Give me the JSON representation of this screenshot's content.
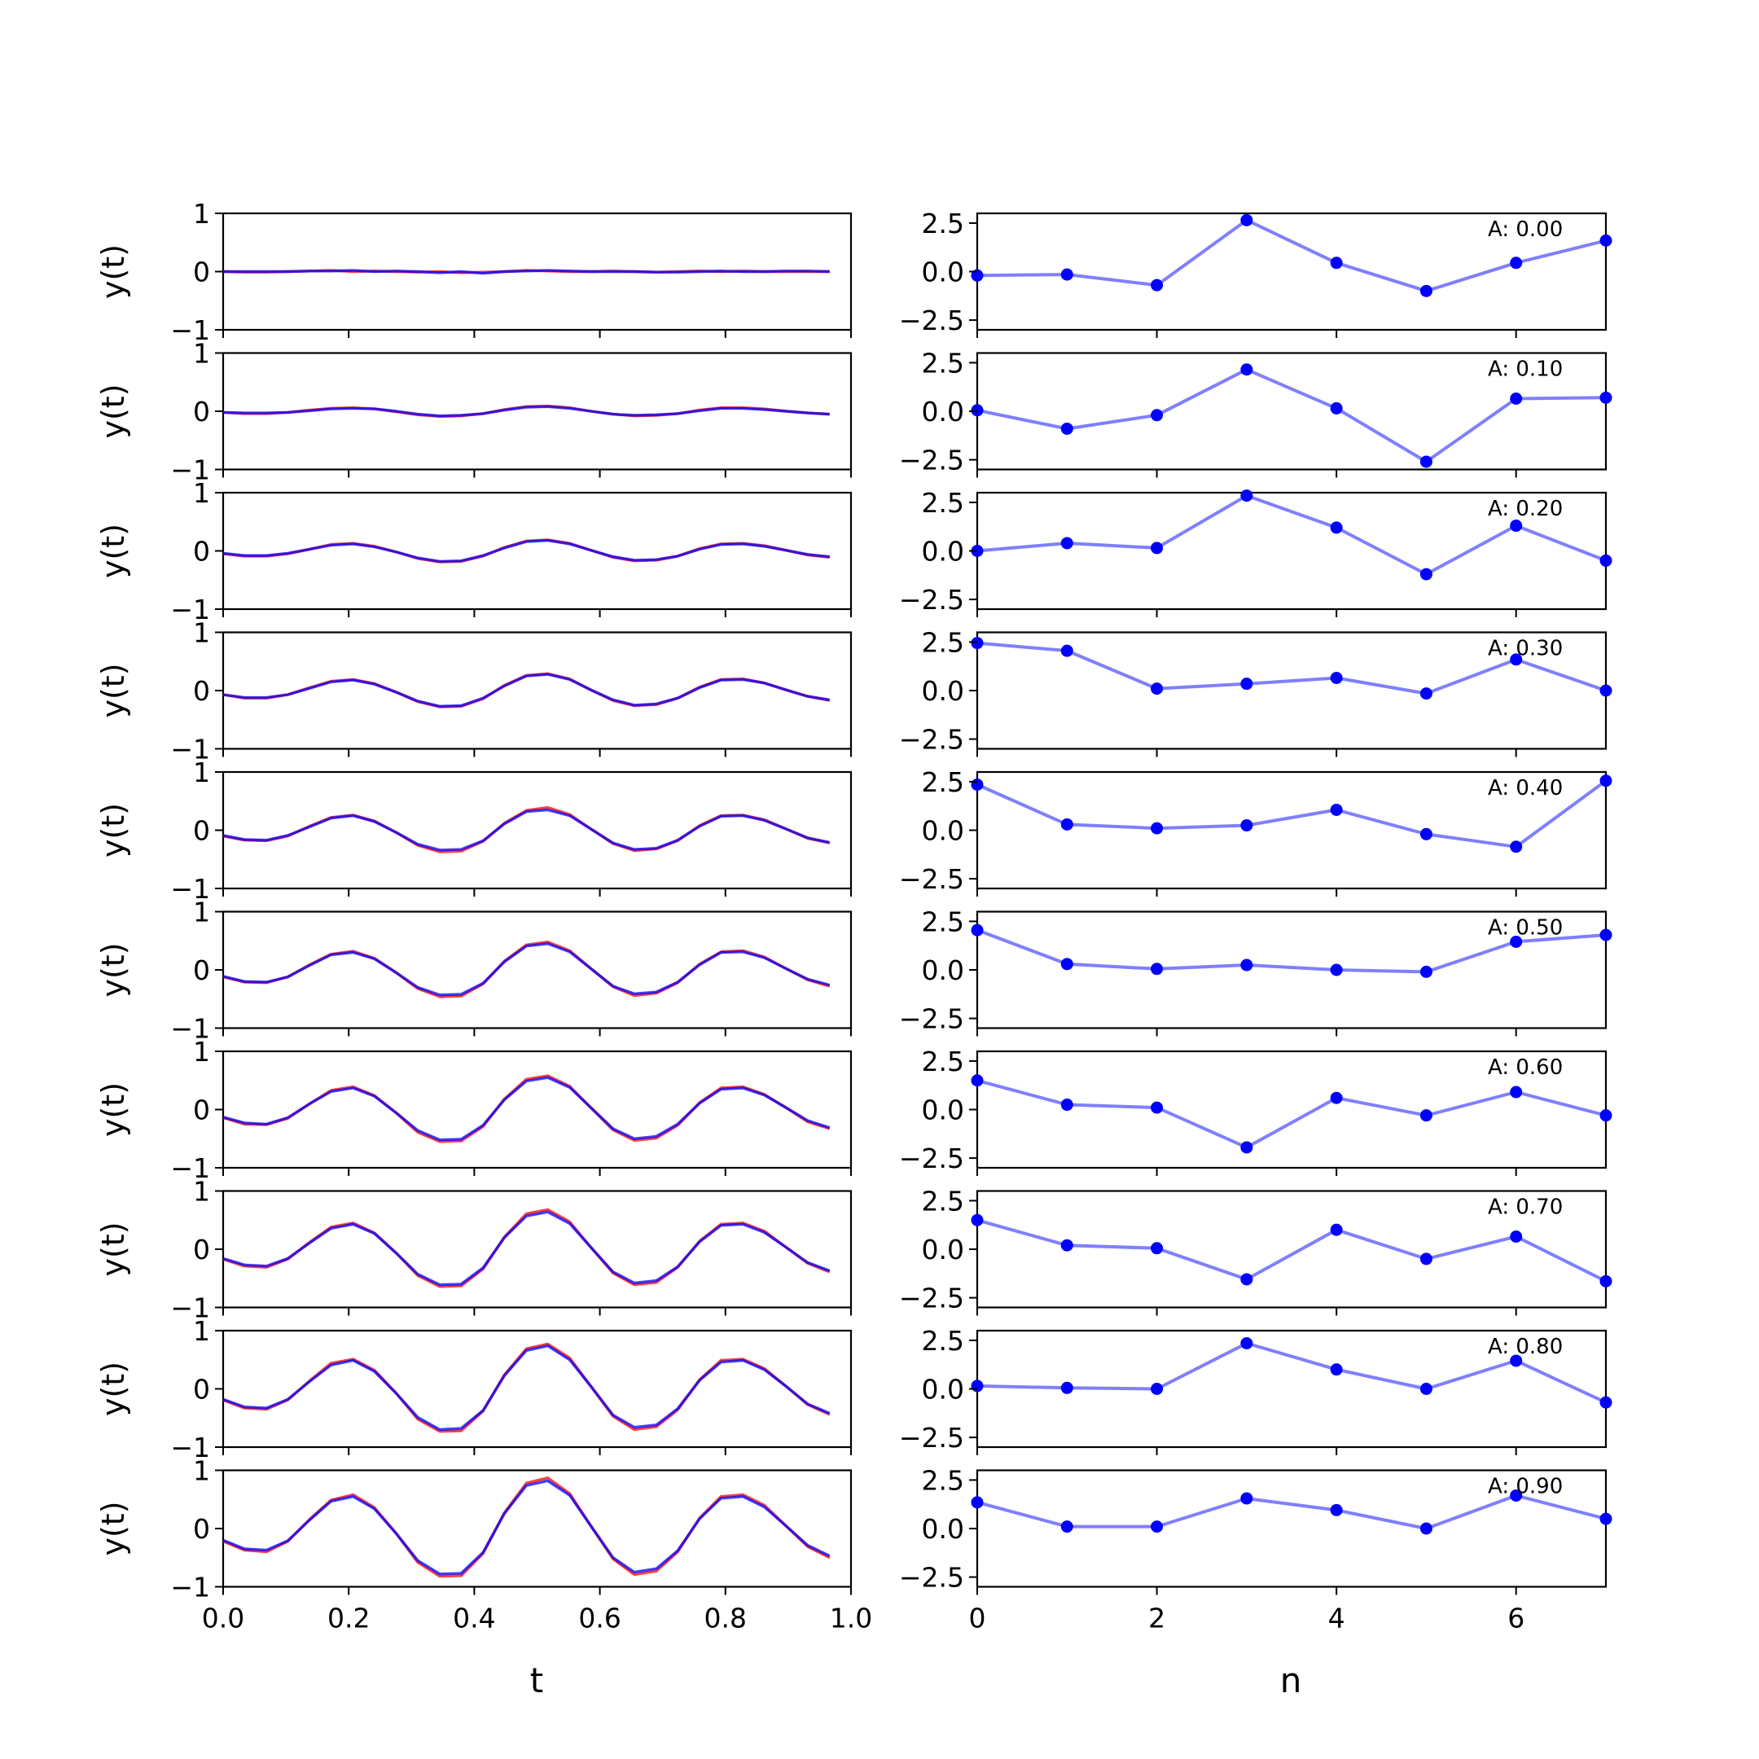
{
  "figure": {
    "left_xlabel": "t",
    "right_xlabel": "n"
  },
  "colors": {
    "signal_red": "#ff0000",
    "signal_blue": "#0000ff",
    "coef_line": "#7f7fff",
    "coef_marker": "#0000ff",
    "axes": "#000000"
  },
  "chart_data": [
    {
      "type": "line",
      "panel": "time-signals",
      "xlabel": "t",
      "ylabel": "y(t)",
      "xlim": [
        0,
        1
      ],
      "ylim": [
        -1,
        1
      ],
      "x_ticks": [
        "0.0",
        "0.2",
        "0.4",
        "0.6",
        "0.8",
        "1.0"
      ],
      "y_ticks": [
        "−1",
        "0",
        "1"
      ],
      "t": [
        0.0,
        0.034,
        0.069,
        0.103,
        0.138,
        0.172,
        0.207,
        0.241,
        0.276,
        0.31,
        0.345,
        0.379,
        0.414,
        0.448,
        0.483,
        0.517,
        0.552,
        0.586,
        0.621,
        0.655,
        0.69,
        0.724,
        0.759,
        0.793,
        0.828,
        0.862,
        0.897,
        0.931,
        0.966
      ],
      "rows": [
        {
          "amplitude": "0.00",
          "red": [
            0.0,
            -0.01,
            -0.01,
            0.0,
            0.01,
            0.02,
            0.0,
            0.01,
            0.0,
            -0.01,
            0.0,
            -0.02,
            -0.01,
            0.0,
            0.02,
            0.01,
            0.0,
            0.0,
            0.01,
            0.0,
            -0.01,
            0.0,
            0.01,
            0.0,
            0.01,
            0.0,
            0.0,
            0.0,
            0.0
          ],
          "blue": [
            0.0,
            0.0,
            0.0,
            0.0,
            0.01,
            0.01,
            0.02,
            0.0,
            0.01,
            0.0,
            -0.02,
            0.0,
            -0.03,
            0.0,
            0.01,
            0.02,
            0.01,
            0.0,
            0.0,
            0.0,
            -0.01,
            -0.01,
            0.0,
            0.01,
            0.0,
            0.0,
            0.01,
            0.01,
            0.0
          ]
        },
        {
          "amplitude": "0.10",
          "red": [
            -0.02,
            -0.04,
            -0.04,
            -0.02,
            0.02,
            0.05,
            0.06,
            0.04,
            -0.01,
            -0.06,
            -0.09,
            -0.08,
            -0.04,
            0.03,
            0.08,
            0.09,
            0.06,
            0.0,
            -0.05,
            -0.08,
            -0.07,
            -0.04,
            0.02,
            0.06,
            0.06,
            0.04,
            0.0,
            -0.03,
            -0.05
          ],
          "blue": [
            -0.02,
            -0.03,
            -0.03,
            -0.02,
            0.01,
            0.04,
            0.05,
            0.04,
            0.0,
            -0.05,
            -0.08,
            -0.07,
            -0.04,
            0.02,
            0.07,
            0.08,
            0.05,
            0.0,
            -0.05,
            -0.07,
            -0.06,
            -0.04,
            0.01,
            0.05,
            0.05,
            0.03,
            0.0,
            -0.03,
            -0.05
          ]
        },
        {
          "amplitude": "0.20",
          "red": [
            -0.05,
            -0.09,
            -0.09,
            -0.05,
            0.03,
            0.11,
            0.13,
            0.08,
            -0.02,
            -0.13,
            -0.19,
            -0.18,
            -0.09,
            0.06,
            0.17,
            0.19,
            0.13,
            0.01,
            -0.11,
            -0.17,
            -0.16,
            -0.09,
            0.04,
            0.12,
            0.13,
            0.09,
            0.01,
            -0.07,
            -0.11
          ],
          "blue": [
            -0.04,
            -0.08,
            -0.08,
            -0.04,
            0.03,
            0.1,
            0.12,
            0.07,
            -0.02,
            -0.12,
            -0.18,
            -0.17,
            -0.08,
            0.05,
            0.16,
            0.18,
            0.12,
            0.01,
            -0.1,
            -0.16,
            -0.15,
            -0.09,
            0.03,
            0.11,
            0.12,
            0.08,
            0.01,
            -0.06,
            -0.1
          ]
        },
        {
          "amplitude": "0.30",
          "red": [
            -0.07,
            -0.13,
            -0.13,
            -0.07,
            0.05,
            0.16,
            0.19,
            0.12,
            -0.03,
            -0.19,
            -0.28,
            -0.27,
            -0.14,
            0.09,
            0.26,
            0.29,
            0.2,
            0.01,
            -0.17,
            -0.26,
            -0.24,
            -0.13,
            0.06,
            0.19,
            0.2,
            0.13,
            0.01,
            -0.1,
            -0.17
          ],
          "blue": [
            -0.07,
            -0.12,
            -0.12,
            -0.07,
            0.04,
            0.15,
            0.18,
            0.11,
            -0.03,
            -0.18,
            -0.27,
            -0.26,
            -0.13,
            0.08,
            0.25,
            0.28,
            0.19,
            0.01,
            -0.16,
            -0.25,
            -0.23,
            -0.13,
            0.05,
            0.18,
            0.19,
            0.13,
            0.01,
            -0.1,
            -0.16
          ]
        },
        {
          "amplitude": "0.40",
          "red": [
            -0.1,
            -0.17,
            -0.18,
            -0.1,
            0.07,
            0.22,
            0.26,
            0.16,
            -0.04,
            -0.26,
            -0.37,
            -0.36,
            -0.19,
            0.12,
            0.34,
            0.39,
            0.27,
            0.02,
            -0.23,
            -0.35,
            -0.32,
            -0.18,
            0.08,
            0.25,
            0.26,
            0.18,
            0.02,
            -0.14,
            -0.22
          ],
          "blue": [
            -0.09,
            -0.16,
            -0.17,
            -0.09,
            0.06,
            0.21,
            0.25,
            0.15,
            -0.04,
            -0.24,
            -0.34,
            -0.33,
            -0.18,
            0.11,
            0.32,
            0.35,
            0.25,
            0.02,
            -0.22,
            -0.33,
            -0.31,
            -0.17,
            0.07,
            0.24,
            0.25,
            0.17,
            0.02,
            -0.13,
            -0.21
          ]
        },
        {
          "amplitude": "0.50",
          "red": [
            -0.12,
            -0.21,
            -0.22,
            -0.12,
            0.09,
            0.27,
            0.32,
            0.2,
            -0.05,
            -0.32,
            -0.46,
            -0.45,
            -0.24,
            0.15,
            0.43,
            0.48,
            0.33,
            0.02,
            -0.29,
            -0.44,
            -0.4,
            -0.22,
            0.1,
            0.31,
            0.33,
            0.22,
            0.02,
            -0.17,
            -0.28
          ],
          "blue": [
            -0.11,
            -0.2,
            -0.21,
            -0.12,
            0.08,
            0.26,
            0.3,
            0.19,
            -0.05,
            -0.3,
            -0.43,
            -0.42,
            -0.23,
            0.14,
            0.41,
            0.45,
            0.31,
            0.02,
            -0.28,
            -0.41,
            -0.38,
            -0.21,
            0.09,
            0.3,
            0.31,
            0.21,
            0.02,
            -0.16,
            -0.26
          ]
        },
        {
          "amplitude": "0.60",
          "red": [
            -0.14,
            -0.25,
            -0.26,
            -0.15,
            0.1,
            0.33,
            0.39,
            0.24,
            -0.06,
            -0.39,
            -0.55,
            -0.54,
            -0.29,
            0.18,
            0.52,
            0.58,
            0.4,
            0.03,
            -0.35,
            -0.53,
            -0.49,
            -0.27,
            0.12,
            0.37,
            0.39,
            0.26,
            0.03,
            -0.21,
            -0.33
          ],
          "blue": [
            -0.13,
            -0.23,
            -0.25,
            -0.14,
            0.1,
            0.31,
            0.37,
            0.23,
            -0.06,
            -0.36,
            -0.52,
            -0.51,
            -0.27,
            0.17,
            0.49,
            0.55,
            0.38,
            0.03,
            -0.33,
            -0.5,
            -0.46,
            -0.25,
            0.11,
            0.35,
            0.37,
            0.25,
            0.03,
            -0.19,
            -0.31
          ]
        },
        {
          "amplitude": "0.70",
          "red": [
            -0.17,
            -0.29,
            -0.31,
            -0.17,
            0.12,
            0.38,
            0.45,
            0.28,
            -0.07,
            -0.45,
            -0.64,
            -0.63,
            -0.34,
            0.21,
            0.61,
            0.68,
            0.47,
            0.03,
            -0.41,
            -0.61,
            -0.57,
            -0.31,
            0.14,
            0.43,
            0.45,
            0.31,
            0.03,
            -0.24,
            -0.39
          ],
          "blue": [
            -0.16,
            -0.27,
            -0.29,
            -0.16,
            0.11,
            0.36,
            0.43,
            0.27,
            -0.07,
            -0.43,
            -0.61,
            -0.6,
            -0.32,
            0.2,
            0.57,
            0.64,
            0.44,
            0.03,
            -0.39,
            -0.58,
            -0.54,
            -0.3,
            0.13,
            0.41,
            0.43,
            0.29,
            0.03,
            -0.23,
            -0.37
          ]
        },
        {
          "amplitude": "0.80",
          "red": [
            -0.19,
            -0.33,
            -0.35,
            -0.19,
            0.14,
            0.44,
            0.51,
            0.32,
            -0.08,
            -0.52,
            -0.73,
            -0.72,
            -0.38,
            0.24,
            0.69,
            0.77,
            0.53,
            0.04,
            -0.47,
            -0.7,
            -0.65,
            -0.36,
            0.16,
            0.49,
            0.51,
            0.35,
            0.04,
            -0.27,
            -0.44
          ],
          "blue": [
            -0.18,
            -0.31,
            -0.33,
            -0.18,
            0.13,
            0.41,
            0.49,
            0.3,
            -0.08,
            -0.49,
            -0.7,
            -0.68,
            -0.37,
            0.23,
            0.66,
            0.74,
            0.5,
            0.04,
            -0.45,
            -0.66,
            -0.62,
            -0.34,
            0.15,
            0.46,
            0.49,
            0.33,
            0.04,
            -0.26,
            -0.42
          ]
        },
        {
          "amplitude": "0.90",
          "red": [
            -0.22,
            -0.37,
            -0.4,
            -0.22,
            0.16,
            0.49,
            0.58,
            0.36,
            -0.09,
            -0.58,
            -0.82,
            -0.81,
            -0.43,
            0.27,
            0.78,
            0.87,
            0.6,
            0.04,
            -0.52,
            -0.79,
            -0.73,
            -0.4,
            0.18,
            0.55,
            0.58,
            0.4,
            0.04,
            -0.31,
            -0.5
          ],
          "blue": [
            -0.2,
            -0.35,
            -0.37,
            -0.21,
            0.15,
            0.47,
            0.55,
            0.34,
            -0.09,
            -0.55,
            -0.78,
            -0.77,
            -0.41,
            0.26,
            0.74,
            0.82,
            0.57,
            0.04,
            -0.5,
            -0.75,
            -0.69,
            -0.38,
            0.17,
            0.52,
            0.55,
            0.37,
            0.04,
            -0.29,
            -0.47
          ]
        }
      ]
    },
    {
      "type": "line",
      "panel": "coefficients",
      "xlabel": "n",
      "xlim": [
        0,
        7
      ],
      "ylim": [
        -3,
        3
      ],
      "x_ticks": [
        "0",
        "2",
        "4",
        "6"
      ],
      "y_ticks": [
        "−2.5",
        "0.0",
        "2.5"
      ],
      "n": [
        0,
        1,
        2,
        3,
        4,
        5,
        6,
        7
      ],
      "rows": [
        {
          "annotation": "A: 0.00",
          "values": [
            -0.2,
            -0.15,
            -0.7,
            2.65,
            0.45,
            -1.0,
            0.45,
            1.6
          ]
        },
        {
          "annotation": "A: 0.10",
          "values": [
            0.05,
            -0.9,
            -0.2,
            2.15,
            0.15,
            -2.6,
            0.65,
            0.7
          ]
        },
        {
          "annotation": "A: 0.20",
          "values": [
            0.0,
            0.4,
            0.15,
            2.85,
            1.2,
            -1.2,
            1.3,
            -0.5
          ]
        },
        {
          "annotation": "A: 0.30",
          "values": [
            2.45,
            2.05,
            0.1,
            0.35,
            0.65,
            -0.15,
            1.6,
            0.0
          ]
        },
        {
          "annotation": "A: 0.40",
          "values": [
            2.35,
            0.3,
            0.1,
            0.25,
            1.05,
            -0.2,
            -0.85,
            2.55
          ]
        },
        {
          "annotation": "A: 0.50",
          "values": [
            2.05,
            0.3,
            0.05,
            0.25,
            0.0,
            -0.1,
            1.45,
            1.8
          ]
        },
        {
          "annotation": "A: 0.60",
          "values": [
            1.5,
            0.25,
            0.1,
            -1.95,
            0.6,
            -0.3,
            0.9,
            -0.3
          ]
        },
        {
          "annotation": "A: 0.70",
          "values": [
            1.5,
            0.2,
            0.05,
            -1.55,
            1.0,
            -0.5,
            0.65,
            -1.65
          ]
        },
        {
          "annotation": "A: 0.80",
          "values": [
            0.15,
            0.05,
            0.0,
            2.35,
            1.0,
            0.0,
            1.45,
            -0.7
          ]
        },
        {
          "annotation": "A: 0.90",
          "values": [
            1.35,
            0.1,
            0.1,
            1.55,
            0.95,
            0.0,
            1.7,
            0.5
          ]
        }
      ]
    }
  ]
}
